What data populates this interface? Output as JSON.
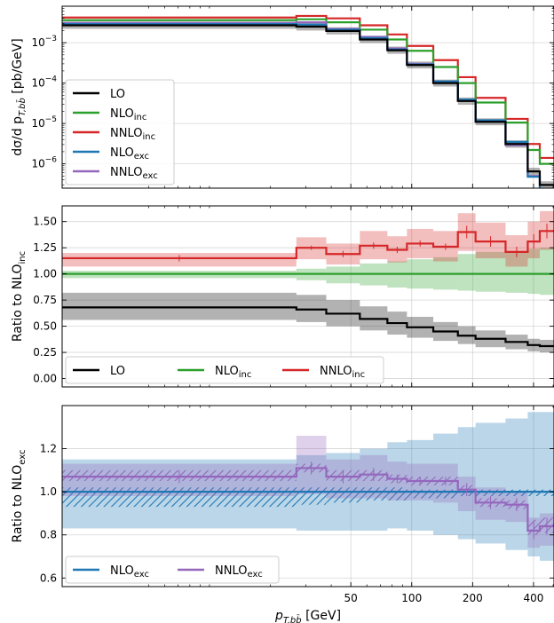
{
  "chart_data": {
    "type": "line",
    "x_edges": [
      1.87,
      26.9,
      37.8,
      55.4,
      75.8,
      94.7,
      127.8,
      169.1,
      206.8,
      291,
      374.5,
      429.5,
      505
    ],
    "xscale": "log",
    "xlabel_main": "p",
    "xlabel_sub": "T,bb̄",
    "xlabel_unit": "[GeV]",
    "xticks": [
      {
        "value": 50,
        "label": "50"
      },
      {
        "value": 100,
        "label": "100"
      },
      {
        "value": 200,
        "label": "200"
      },
      {
        "value": 400,
        "label": "400"
      }
    ],
    "series_styles": [
      {
        "key": "LO",
        "name": "LO",
        "sub": "",
        "color": "#000000"
      },
      {
        "key": "NLOinc",
        "name": "NLO",
        "sub": "inc",
        "color": "#2ca02c"
      },
      {
        "key": "NNLOinc",
        "name": "NNLO",
        "sub": "inc",
        "color": "#d62728"
      },
      {
        "key": "NLOexc",
        "name": "NLO",
        "sub": "exc",
        "color": "#1f77b4"
      },
      {
        "key": "NNLOexc",
        "name": "NNLO",
        "sub": "exc",
        "color": "#9467bd"
      }
    ],
    "panels": [
      {
        "id": "top",
        "yscale": "log",
        "ylim": [
          2.5e-07,
          0.008
        ],
        "ylabel": "dσ/d p",
        "ylabel_sub": "T,bb̄",
        "ylabel_unit": "[pb/GeV]",
        "yticks": [
          {
            "value": 0.001,
            "base": "10",
            "exp": "−3"
          },
          {
            "value": 0.0001,
            "base": "10",
            "exp": "−4"
          },
          {
            "value": 1e-05,
            "base": "10",
            "exp": "−5"
          },
          {
            "value": 1e-06,
            "base": "10",
            "exp": "−6"
          }
        ],
        "legend": {
          "placement": "lower-left",
          "columns": 1,
          "keys": [
            "LO",
            "NLOinc",
            "NNLOinc",
            "NLOexc",
            "NNLOexc"
          ]
        },
        "draw_order": [
          "NNLOinc",
          "NLOinc",
          "NNLOexc",
          "NLOexc",
          "LO"
        ],
        "series": [
          {
            "key": "LO",
            "values": [
              0.0027,
              0.0025,
              0.00195,
              0.0012,
              0.00065,
              0.00028,
              0.0001,
              3.6e-05,
              1.1e-05,
              3.1e-06,
              6.5e-07,
              3e-07
            ],
            "band_lo": [
              0.0022,
              0.002,
              0.0016,
              0.00098,
              0.00053,
              0.00023,
              8.2e-05,
              2.9e-05,
              9e-06,
              2.5e-06,
              5.2e-07,
              2.4e-07
            ],
            "band_hi": [
              0.0033,
              0.0031,
              0.0024,
              0.00146,
              0.0008,
              0.00034,
              0.000122,
              4.4e-05,
              1.34e-05,
              3.8e-06,
              8e-07,
              3.7e-07
            ]
          },
          {
            "key": "NLOinc",
            "values": [
              0.0036,
              0.0038,
              0.0032,
              0.0021,
              0.0012,
              0.00063,
              0.00025,
              0.0001,
              3.3e-05,
              1.05e-05,
              2.2e-06,
              1e-06
            ]
          },
          {
            "key": "NNLOinc",
            "values": [
              0.0042,
              0.0046,
              0.004,
              0.0027,
              0.0016,
              0.00083,
              0.00037,
              0.00014,
              4.3e-05,
              1.3e-05,
              3.1e-06,
              1.4e-06
            ]
          },
          {
            "key": "NLOexc",
            "values": [
              0.0029,
              0.0028,
              0.0021,
              0.0013,
              0.00068,
              0.00029,
              0.00011,
              3.9e-05,
              1.2e-05,
              3.5e-06,
              4.8e-07,
              2.1e-07
            ]
          },
          {
            "key": "NNLOexc",
            "values": [
              0.0031,
              0.0032,
              0.0022,
              0.0014,
              0.00072,
              0.0003,
              0.00011,
              3.7e-05,
              1.15e-05,
              2.9e-06,
              5e-07,
              2.2e-07
            ]
          }
        ]
      },
      {
        "id": "mid",
        "yscale": "linear",
        "ylim": [
          -0.08,
          1.65
        ],
        "ylabel": "Ratio to NLO",
        "ylabel_sub": "inc",
        "yticks": [
          {
            "value": 0,
            "label": "0.00"
          },
          {
            "value": 0.25,
            "label": "0.25"
          },
          {
            "value": 0.5,
            "label": "0.50"
          },
          {
            "value": 0.75,
            "label": "0.75"
          },
          {
            "value": 1,
            "label": "1.00"
          },
          {
            "value": 1.25,
            "label": "1.25"
          },
          {
            "value": 1.5,
            "label": "1.50"
          }
        ],
        "legend": {
          "placement": "lower-left",
          "columns": 3,
          "keys": [
            "LO",
            "NLOinc",
            "NNLOinc"
          ]
        },
        "draw_order": [
          "NLOinc",
          "LO",
          "NNLOinc"
        ],
        "series": [
          {
            "key": "LO",
            "values": [
              0.68,
              0.66,
              0.62,
              0.57,
              0.53,
              0.49,
              0.45,
              0.41,
              0.38,
              0.35,
              0.32,
              0.31
            ],
            "band_lo": [
              0.56,
              0.54,
              0.5,
              0.46,
              0.42,
              0.39,
              0.36,
              0.33,
              0.3,
              0.28,
              0.26,
              0.25
            ],
            "band_hi": [
              0.82,
              0.8,
              0.75,
              0.69,
              0.64,
              0.59,
              0.54,
              0.5,
              0.46,
              0.42,
              0.38,
              0.37
            ]
          },
          {
            "key": "NLOinc",
            "values": [
              1,
              1,
              1,
              1,
              1,
              1,
              1,
              1,
              1,
              1,
              1,
              1
            ],
            "band_lo": [
              0.96,
              0.94,
              0.91,
              0.89,
              0.87,
              0.86,
              0.85,
              0.84,
              0.83,
              0.82,
              0.81,
              0.8
            ],
            "band_hi": [
              1.03,
              1.05,
              1.07,
              1.1,
              1.12,
              1.14,
              1.16,
              1.19,
              1.21,
              1.22,
              1.24,
              1.25
            ]
          },
          {
            "key": "NNLOinc",
            "values": [
              1.15,
              1.25,
              1.19,
              1.27,
              1.23,
              1.29,
              1.26,
              1.4,
              1.31,
              1.21,
              1.31,
              1.41
            ],
            "band_lo": [
              1.07,
              1.14,
              1.09,
              1.14,
              1.11,
              1.15,
              1.12,
              1.22,
              1.15,
              1.07,
              1.15,
              1.23
            ],
            "band_hi": [
              1.2,
              1.35,
              1.29,
              1.41,
              1.36,
              1.43,
              1.41,
              1.58,
              1.49,
              1.37,
              1.5,
              1.6
            ],
            "err": [
              0.03,
              0.02,
              0.03,
              0.03,
              0.03,
              0.03,
              0.03,
              0.06,
              0.05,
              0.05,
              0.07,
              0.07
            ]
          }
        ]
      },
      {
        "id": "bot",
        "yscale": "linear",
        "ylim": [
          0.56,
          1.4
        ],
        "ylabel": "Ratio to NLO",
        "ylabel_sub": "exc",
        "yticks": [
          {
            "value": 0.6,
            "label": "0.6"
          },
          {
            "value": 0.8,
            "label": "0.8"
          },
          {
            "value": 1.0,
            "label": "1.0"
          },
          {
            "value": 1.2,
            "label": "1.2"
          }
        ],
        "legend": {
          "placement": "lower-left",
          "columns": 2,
          "keys": [
            "NLOexc",
            "NNLOexc"
          ]
        },
        "draw_order": [
          "NLOexc",
          "NNLOexc"
        ],
        "series": [
          {
            "key": "NLOexc",
            "values": [
              1,
              1,
              1,
              1,
              1,
              1,
              1,
              1,
              1,
              1,
              1,
              1
            ],
            "band_lo": [
              0.83,
              0.82,
              0.82,
              0.82,
              0.83,
              0.82,
              0.8,
              0.78,
              0.76,
              0.73,
              0.7,
              0.68
            ],
            "band_hi": [
              1.15,
              1.17,
              1.18,
              1.2,
              1.23,
              1.24,
              1.27,
              1.3,
              1.32,
              1.34,
              1.37,
              1.37
            ],
            "stat_lo": [
              0.93,
              0.94,
              0.95,
              0.96,
              0.96,
              0.97,
              0.97,
              0.98,
              0.98,
              0.98,
              0.98,
              0.98
            ],
            "stat_hi": [
              1.02,
              1.02,
              1.02,
              1.02,
              1.02,
              1.01,
              1.01,
              1.01,
              1.01,
              1.01,
              1.01,
              1.01
            ]
          },
          {
            "key": "NNLOexc",
            "values": [
              1.07,
              1.11,
              1.07,
              1.08,
              1.06,
              1.05,
              1.05,
              1.01,
              0.95,
              0.94,
              0.82,
              0.84
            ],
            "band_lo": [
              0.98,
              0.99,
              0.97,
              0.97,
              0.96,
              0.96,
              0.95,
              0.91,
              0.87,
              0.86,
              0.74,
              0.75
            ],
            "band_hi": [
              1.13,
              1.26,
              1.15,
              1.17,
              1.14,
              1.13,
              1.13,
              1.07,
              1.02,
              1.0,
              0.88,
              0.9
            ],
            "stat_lo": [
              1.05,
              1.09,
              1.05,
              1.05,
              1.04,
              1.03,
              1.03,
              0.99,
              0.93,
              0.92,
              0.8,
              0.81
            ],
            "stat_hi": [
              1.1,
              1.13,
              1.1,
              1.1,
              1.08,
              1.07,
              1.07,
              1.03,
              0.97,
              0.96,
              0.87,
              0.88
            ],
            "err": [
              0.03,
              0.03,
              0.03,
              0.03,
              0.02,
              0.02,
              0.02,
              0.03,
              0.03,
              0.03,
              0.04,
              0.04
            ]
          }
        ]
      }
    ]
  }
}
